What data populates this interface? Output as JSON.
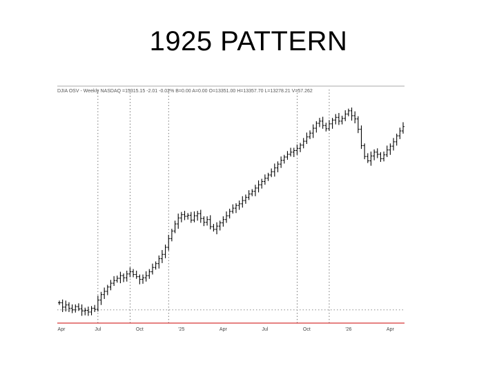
{
  "slide": {
    "title": "1925 PATTERN"
  },
  "chart_data": {
    "type": "ohlc",
    "header": "DJIA OSV - Weekly NASDAQ  =15315.15  -2.01  -0.02%  B=0.00  A=0.00  O=13351.00  H=13357.70  L=13278.21  V=57.262",
    "grid": true,
    "x_tick_labels": [
      "Jul",
      "Oct",
      "'25",
      "Apr",
      "Jul",
      "Oct",
      "'26",
      "Apr"
    ],
    "x_start_label": "Apr",
    "close": [
      131,
      123,
      127,
      121,
      118,
      124,
      120,
      116,
      117,
      114,
      121,
      119,
      136,
      146,
      152,
      160,
      167,
      172,
      176,
      181,
      177,
      184,
      188,
      183,
      179,
      174,
      177,
      181,
      188,
      196,
      203,
      212,
      220,
      233,
      249,
      263,
      276,
      287,
      293,
      290,
      292,
      283,
      291,
      295,
      286,
      279,
      284,
      271,
      266,
      272,
      278,
      284,
      291,
      299,
      305,
      310,
      313,
      319,
      325,
      331,
      336,
      342,
      348,
      354,
      360,
      366,
      372,
      379,
      386,
      393,
      399,
      404,
      408,
      411,
      415,
      421,
      428,
      436,
      443,
      452,
      461,
      465,
      457,
      451,
      460,
      467,
      472,
      465,
      470,
      478,
      484,
      475,
      469,
      450,
      420,
      400,
      392,
      401,
      408,
      404,
      396,
      403,
      412,
      419,
      427,
      438,
      447,
      455
    ],
    "vertical_markers_week": [
      12,
      22,
      34,
      74,
      84
    ],
    "lower_band": 118,
    "bar_color": "#000000",
    "marker_color": "#555555",
    "baseline_color": "#cc0000"
  }
}
